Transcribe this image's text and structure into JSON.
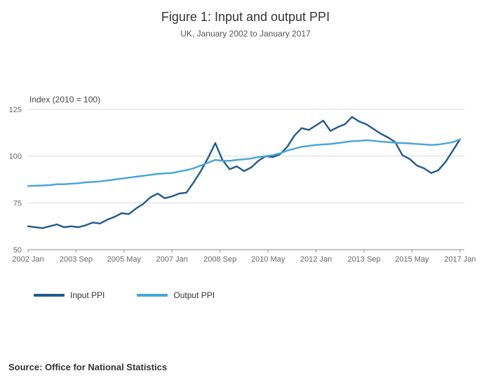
{
  "header": {
    "title": "Figure 1: Input and output PPI",
    "subtitle": "UK, January 2002 to January 2017"
  },
  "chart_data": {
    "type": "line",
    "title": "Figure 1: Input and output PPI",
    "subtitle": "UK, January 2002 to January 2017",
    "axis_note": "Index (2010 = 100)",
    "ylabel": "Index (2010 = 100)",
    "xlabel": "",
    "ylim": [
      50,
      125
    ],
    "xlim": [
      2002,
      2017.15
    ],
    "y_ticks": [
      125,
      100,
      75,
      50
    ],
    "x_ticks": [
      {
        "label": "2002 Jan",
        "x": 2002.0
      },
      {
        "label": "2003 Sep",
        "x": 2003.667
      },
      {
        "label": "2005 May",
        "x": 2005.333
      },
      {
        "label": "2007 Jan",
        "x": 2007.0
      },
      {
        "label": "2008 Sep",
        "x": 2008.667
      },
      {
        "label": "2010 May",
        "x": 2010.333
      },
      {
        "label": "2012 Jan",
        "x": 2012.0
      },
      {
        "label": "2013 Sep",
        "x": 2013.667
      },
      {
        "label": "2015 May",
        "x": 2015.333
      },
      {
        "label": "2017 Jan",
        "x": 2017.0
      }
    ],
    "grid": "horizontal",
    "legend_position": "bottom-left",
    "series": [
      {
        "name": "Input PPI",
        "color": "#1f5b8e",
        "x_start": 2002.0,
        "x_step_years": 0.25,
        "values": [
          62.5,
          62.0,
          61.5,
          62.5,
          63.5,
          62.0,
          62.5,
          62.0,
          63.0,
          64.5,
          64.0,
          66.0,
          67.5,
          69.5,
          69.0,
          72.0,
          74.5,
          78.0,
          80.0,
          77.5,
          78.5,
          80.0,
          80.5,
          86.0,
          92.0,
          99.0,
          107.0,
          98.0,
          93.0,
          94.5,
          92.0,
          94.0,
          97.5,
          100.0,
          99.5,
          101.0,
          105.0,
          111.0,
          115.0,
          114.0,
          116.5,
          119.0,
          113.5,
          115.5,
          117.0,
          121.0,
          118.5,
          117.0,
          114.5,
          112.0,
          110.0,
          107.5,
          100.5,
          98.5,
          95.0,
          93.5,
          91.0,
          92.5,
          97.0,
          103.0,
          109.0
        ]
      },
      {
        "name": "Output PPI",
        "color": "#45a6d7",
        "x_start": 2002.0,
        "x_step_years": 0.25,
        "values": [
          84.0,
          84.2,
          84.3,
          84.5,
          85.0,
          85.0,
          85.3,
          85.5,
          86.0,
          86.2,
          86.5,
          87.0,
          87.5,
          88.0,
          88.5,
          89.0,
          89.5,
          90.0,
          90.5,
          90.8,
          91.0,
          91.8,
          92.5,
          93.5,
          95.0,
          96.5,
          98.0,
          97.5,
          97.5,
          98.0,
          98.3,
          98.8,
          99.5,
          100.0,
          100.5,
          101.5,
          103.0,
          104.0,
          105.0,
          105.5,
          106.0,
          106.3,
          106.5,
          107.0,
          107.5,
          108.0,
          108.2,
          108.5,
          108.2,
          107.8,
          107.5,
          107.2,
          107.0,
          106.8,
          106.5,
          106.3,
          106.0,
          106.2,
          106.8,
          107.5,
          109.0
        ]
      }
    ]
  },
  "legend": {
    "items": [
      {
        "label": "Input PPI"
      },
      {
        "label": "Output PPI"
      }
    ]
  },
  "source": "Source: Office for National Statistics"
}
